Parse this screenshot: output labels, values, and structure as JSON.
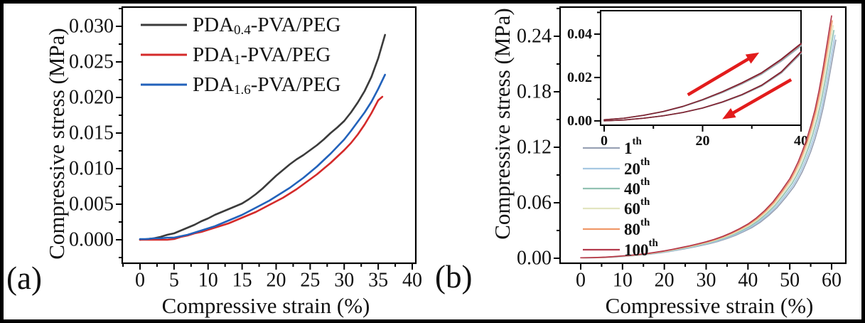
{
  "figure": {
    "background": "#ffffff",
    "frame_color": "#000000",
    "text_color": "#111111"
  },
  "chart_data": [
    {
      "id": "a",
      "type": "line",
      "panel_label": "(a)",
      "xlabel": "Compressive strain (%)",
      "ylabel": "Compressive stress (MPa)",
      "xlim": [
        0,
        40
      ],
      "ylim": [
        0,
        0.03
      ],
      "x_range": [
        -2.61,
        40.52
      ],
      "y_range": [
        -0.0033,
        0.0327
      ],
      "grid": false,
      "legend_position": "top-left-inside",
      "xticks": {
        "values": [
          0,
          5,
          10,
          15,
          20,
          25,
          30,
          35,
          40
        ],
        "labels": [
          "0",
          "5",
          "10",
          "15",
          "20",
          "25",
          "30",
          "35",
          "40"
        ]
      },
      "yticks": {
        "values": [
          0,
          0.005,
          0.01,
          0.015,
          0.02,
          0.025,
          0.03
        ],
        "labels": [
          "0.000",
          "0.005",
          "0.010",
          "0.015",
          "0.020",
          "0.025",
          "0.030"
        ]
      },
      "series": [
        {
          "name": "PDA0.4-PVA/PEG",
          "label": {
            "prefix": "PDA",
            "sub": "0.4",
            "suffix": "-PVA/PEG"
          },
          "color": "#3b3b3b",
          "points": [
            [
              0,
              0
            ],
            [
              1,
              0.0001
            ],
            [
              2,
              0.0002
            ],
            [
              3,
              0.0004
            ],
            [
              4,
              0.0007
            ],
            [
              5,
              0.0009
            ],
            [
              6,
              0.0013
            ],
            [
              7,
              0.0017
            ],
            [
              8,
              0.0021
            ],
            [
              9,
              0.0026
            ],
            [
              10,
              0.003
            ],
            [
              11,
              0.0035
            ],
            [
              12,
              0.0039
            ],
            [
              13,
              0.0043
            ],
            [
              14,
              0.0047
            ],
            [
              15,
              0.0051
            ],
            [
              16,
              0.0057
            ],
            [
              17,
              0.0064
            ],
            [
              18,
              0.0072
            ],
            [
              19,
              0.0081
            ],
            [
              20,
              0.009
            ],
            [
              21,
              0.0098
            ],
            [
              22,
              0.0106
            ],
            [
              23,
              0.0113
            ],
            [
              24,
              0.0119
            ],
            [
              25,
              0.0126
            ],
            [
              26,
              0.0133
            ],
            [
              27,
              0.0141
            ],
            [
              28,
              0.015
            ],
            [
              29,
              0.0158
            ],
            [
              30,
              0.0167
            ],
            [
              31,
              0.0179
            ],
            [
              32,
              0.0193
            ],
            [
              33,
              0.0209
            ],
            [
              34,
              0.0229
            ],
            [
              35,
              0.0255
            ],
            [
              36,
              0.0288
            ]
          ]
        },
        {
          "name": "PDA1-PVA/PEG",
          "label": {
            "prefix": "PDA",
            "sub": "1",
            "suffix": "-PVA/PEG"
          },
          "color": "#d42a2a",
          "points": [
            [
              0,
              0
            ],
            [
              1,
              0
            ],
            [
              2,
              0
            ],
            [
              3,
              0
            ],
            [
              4,
              0
            ],
            [
              5,
              0.0001
            ],
            [
              6,
              0.0004
            ],
            [
              7,
              0.0006
            ],
            [
              8,
              0.0009
            ],
            [
              9,
              0.0011
            ],
            [
              10,
              0.0014
            ],
            [
              11,
              0.0017
            ],
            [
              12,
              0.002
            ],
            [
              13,
              0.0023
            ],
            [
              14,
              0.0027
            ],
            [
              15,
              0.0031
            ],
            [
              16,
              0.0035
            ],
            [
              17,
              0.0039
            ],
            [
              18,
              0.0044
            ],
            [
              19,
              0.0049
            ],
            [
              20,
              0.0054
            ],
            [
              21,
              0.0059
            ],
            [
              22,
              0.0065
            ],
            [
              23,
              0.0071
            ],
            [
              24,
              0.0078
            ],
            [
              25,
              0.0085
            ],
            [
              26,
              0.0092
            ],
            [
              27,
              0.01
            ],
            [
              28,
              0.0108
            ],
            [
              29,
              0.0117
            ],
            [
              30,
              0.0126
            ],
            [
              31,
              0.0136
            ],
            [
              32,
              0.0148
            ],
            [
              33,
              0.0162
            ],
            [
              34,
              0.0178
            ],
            [
              35,
              0.0196
            ],
            [
              35.6,
              0.0201
            ]
          ]
        },
        {
          "name": "PDA1.6-PVA/PEG",
          "label": {
            "prefix": "PDA",
            "sub": "1.6",
            "suffix": "-PVA/PEG"
          },
          "color": "#2262bb",
          "points": [
            [
              0,
              0.0001
            ],
            [
              1,
              0.0001
            ],
            [
              2,
              0.0002
            ],
            [
              3,
              0.0002
            ],
            [
              4,
              0.0003
            ],
            [
              5,
              0.0003
            ],
            [
              6,
              0.0005
            ],
            [
              7,
              0.0007
            ],
            [
              8,
              0.001
            ],
            [
              9,
              0.0013
            ],
            [
              10,
              0.0016
            ],
            [
              11,
              0.0019
            ],
            [
              12,
              0.0023
            ],
            [
              13,
              0.0027
            ],
            [
              14,
              0.0031
            ],
            [
              15,
              0.0035
            ],
            [
              16,
              0.004
            ],
            [
              17,
              0.0045
            ],
            [
              18,
              0.005
            ],
            [
              19,
              0.0055
            ],
            [
              20,
              0.0061
            ],
            [
              21,
              0.0067
            ],
            [
              22,
              0.0073
            ],
            [
              23,
              0.008
            ],
            [
              24,
              0.0087
            ],
            [
              25,
              0.0095
            ],
            [
              26,
              0.0103
            ],
            [
              27,
              0.0112
            ],
            [
              28,
              0.0121
            ],
            [
              29,
              0.0131
            ],
            [
              30,
              0.0141
            ],
            [
              31,
              0.0153
            ],
            [
              32,
              0.0166
            ],
            [
              33,
              0.0179
            ],
            [
              34,
              0.0194
            ],
            [
              35,
              0.0212
            ],
            [
              36,
              0.0232
            ]
          ]
        }
      ]
    },
    {
      "id": "b",
      "type": "line",
      "panel_label": "(b)",
      "xlabel": "Compressive strain (%)",
      "ylabel": "Compressive stress (MPa)",
      "xlim": [
        0,
        60
      ],
      "ylim": [
        0,
        0.24
      ],
      "x_range": [
        -4.93,
        63.4
      ],
      "y_range": [
        -0.0054,
        0.2715
      ],
      "grid": false,
      "legend_position": "center-left-inside",
      "xticks": {
        "values": [
          0,
          10,
          20,
          30,
          40,
          50,
          60
        ],
        "labels": [
          "0",
          "10",
          "20",
          "30",
          "40",
          "50",
          "60"
        ]
      },
      "yticks": {
        "values": [
          0,
          0.06,
          0.12,
          0.18,
          0.24
        ],
        "labels": [
          "0.00",
          "0.06",
          "0.12",
          "0.18",
          "0.24"
        ]
      },
      "base_points": [
        [
          0,
          0.0005
        ],
        [
          2,
          0.0006
        ],
        [
          4,
          0.0008
        ],
        [
          6,
          0.0012
        ],
        [
          8,
          0.0018
        ],
        [
          10,
          0.0025
        ],
        [
          12,
          0.0032
        ],
        [
          14,
          0.0041
        ],
        [
          16,
          0.0052
        ],
        [
          18,
          0.0065
        ],
        [
          20,
          0.008
        ],
        [
          22,
          0.0097
        ],
        [
          24,
          0.0115
        ],
        [
          26,
          0.0134
        ],
        [
          28,
          0.0155
        ],
        [
          30,
          0.0178
        ],
        [
          32,
          0.0205
        ],
        [
          34,
          0.0237
        ],
        [
          36,
          0.0275
        ],
        [
          38,
          0.032
        ],
        [
          40,
          0.037
        ],
        [
          42,
          0.0435
        ],
        [
          44,
          0.0515
        ],
        [
          46,
          0.061
        ],
        [
          48,
          0.073
        ],
        [
          50,
          0.086
        ],
        [
          51,
          0.0945
        ],
        [
          52,
          0.104
        ],
        [
          53,
          0.1155
        ],
        [
          54,
          0.128
        ],
        [
          55,
          0.143
        ],
        [
          56,
          0.16
        ],
        [
          57,
          0.181
        ],
        [
          58,
          0.206
        ],
        [
          59,
          0.234
        ],
        [
          59.6,
          0.251
        ],
        [
          60,
          0.262
        ]
      ],
      "series": [
        {
          "name": "1th",
          "label": {
            "base": "1",
            "sup": "th"
          },
          "color": "#99a2b5",
          "dx": 1.0,
          "yscale": 0.9
        },
        {
          "name": "20th",
          "label": {
            "base": "20",
            "sup": "th"
          },
          "color": "#a6c8e2",
          "dx": 0.8,
          "yscale": 0.92
        },
        {
          "name": "40th",
          "label": {
            "base": "40",
            "sup": "th"
          },
          "color": "#92c2b2",
          "dx": 0.55,
          "yscale": 0.94
        },
        {
          "name": "60th",
          "label": {
            "base": "60",
            "sup": "th"
          },
          "color": "#e2e5c0",
          "dx": 0.35,
          "yscale": 0.96
        },
        {
          "name": "80th",
          "label": {
            "base": "80",
            "sup": "th"
          },
          "color": "#f0996a",
          "dx": 0.15,
          "yscale": 0.98
        },
        {
          "name": "100th",
          "label": {
            "base": "100",
            "sup": "th"
          },
          "color": "#b43a4d",
          "dx": 0,
          "yscale": 1.0
        }
      ],
      "inset": {
        "xlim": [
          0,
          40
        ],
        "ylim": [
          0,
          0.04
        ],
        "x_range": [
          -0.72,
          40.0
        ],
        "y_range": [
          -0.002,
          0.0508
        ],
        "xticks": {
          "values": [
            0,
            20,
            40
          ],
          "labels": [
            "0",
            "20",
            "40"
          ]
        },
        "yticks": {
          "values": [
            0,
            0.02,
            0.04
          ],
          "labels": [
            "0.00",
            "0.02",
            "0.04"
          ]
        },
        "loading_points": [
          [
            0,
            0.0005
          ],
          [
            4,
            0.0012
          ],
          [
            8,
            0.0025
          ],
          [
            12,
            0.0042
          ],
          [
            16,
            0.0065
          ],
          [
            20,
            0.0095
          ],
          [
            24,
            0.013
          ],
          [
            28,
            0.017
          ],
          [
            32,
            0.0215
          ],
          [
            36,
            0.0275
          ],
          [
            40,
            0.0345
          ]
        ],
        "unloading_points": [
          [
            0,
            0
          ],
          [
            4,
            0.0004
          ],
          [
            8,
            0.0012
          ],
          [
            12,
            0.0023
          ],
          [
            16,
            0.0038
          ],
          [
            20,
            0.0058
          ],
          [
            24,
            0.0085
          ],
          [
            28,
            0.0118
          ],
          [
            32,
            0.016
          ],
          [
            36,
            0.022
          ],
          [
            40,
            0.031
          ]
        ],
        "bundle_colors": [
          "#99a2b5",
          "#92c2b2",
          "#b43a4d",
          "#7a2230"
        ],
        "arrow_color": "#e21c1c",
        "arrows": [
          {
            "name": "loading-arrow",
            "from": [
              17,
              0.012
            ],
            "to": [
              31.5,
              0.0315
            ]
          },
          {
            "name": "unloading-arrow",
            "from": [
              38,
              0.019
            ],
            "to": [
              24,
              0.0008
            ]
          }
        ]
      }
    }
  ]
}
